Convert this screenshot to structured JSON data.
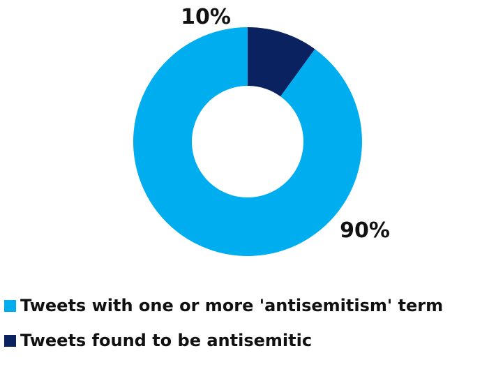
{
  "chart_data": {
    "type": "pie",
    "donut": true,
    "title": "",
    "slices": [
      {
        "label": "Tweets found to be antisemitic",
        "value": 10,
        "display": "10%",
        "color": "#0a2260"
      },
      {
        "label": "Tweets with one or more 'antisemitism' term",
        "value": 90,
        "display": "90%",
        "color": "#00adee"
      }
    ],
    "legend": {
      "placement": "bottom-left",
      "items": [
        {
          "label": "Tweets with one or more 'antisemitism' term",
          "color": "#00adee"
        },
        {
          "label": "Tweets found to be antisemitic",
          "color": "#0a2260"
        }
      ]
    }
  }
}
